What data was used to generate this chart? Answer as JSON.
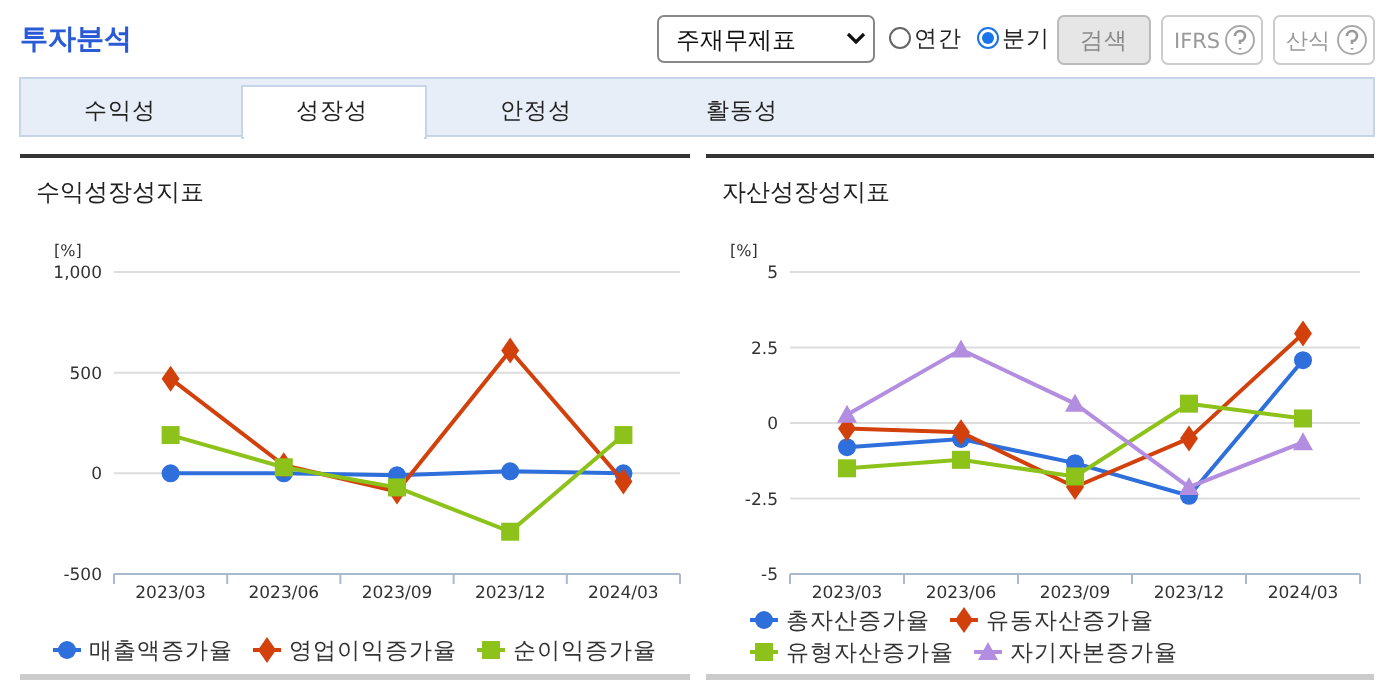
{
  "chart_data": [
    {
      "type": "other",
      "title": "투자분석",
      "annotations": [
        "주재무제표",
        "연간",
        "분기",
        "검색",
        "IFRS",
        "산식",
        "수익성",
        "성장성",
        "안정성",
        "활동성"
      ]
    },
    {
      "type": "line",
      "title": "수익성장성지표",
      "ylabel": "[%]",
      "categories": [
        "2023/03",
        "2023/06",
        "2023/09",
        "2023/12",
        "2024/03"
      ],
      "ylim": [
        -500,
        1000
      ],
      "yticks": [
        {
          "value": -500,
          "label": "-500"
        },
        0,
        500,
        {
          "value": 1000,
          "label": "1,000"
        }
      ],
      "grid": "y",
      "legend": "bottom",
      "line_style": "solid",
      "series": [
        {
          "name": "매출액증가율",
          "color": "#2e6fdc",
          "marker": "circle",
          "values": [
            0,
            0,
            -10,
            10,
            0
          ]
        },
        {
          "name": "영업이익증가율",
          "color": "#d2400c",
          "marker": "diamond",
          "values": [
            470,
            40,
            -90,
            610,
            -40
          ]
        },
        {
          "name": "순이익증가율",
          "color": "#8cc21a",
          "marker": "square",
          "values": [
            190,
            30,
            -70,
            -290,
            190
          ]
        }
      ]
    },
    {
      "type": "line",
      "title": "자산성장성지표",
      "ylabel": "[%]",
      "categories": [
        "2023/03",
        "2023/06",
        "2023/09",
        "2023/12",
        "2024/03"
      ],
      "ylim": [
        -5,
        5
      ],
      "yticks": [
        -5,
        -2.5,
        0,
        2.5,
        5
      ],
      "grid": "y",
      "legend": "bottom",
      "line_style": "solid",
      "series": [
        {
          "name": "총자산증가율",
          "color": "#2e6fdc",
          "marker": "circle",
          "values": [
            -0.8,
            -0.53,
            -1.33,
            -2.41,
            2.08
          ]
        },
        {
          "name": "유동자산증가율",
          "color": "#d2400c",
          "marker": "diamond",
          "values": [
            -0.18,
            -0.31,
            -2.12,
            -0.51,
            2.96
          ]
        },
        {
          "name": "유형자산증가율",
          "color": "#8cc21a",
          "marker": "square",
          "values": [
            -1.5,
            -1.22,
            -1.77,
            0.64,
            0.15
          ]
        },
        {
          "name": "자기자본증가율",
          "color": "#b38ee0",
          "marker": "triangle",
          "values": [
            0.27,
            2.43,
            0.64,
            -2.12,
            -0.64
          ]
        }
      ]
    }
  ]
}
